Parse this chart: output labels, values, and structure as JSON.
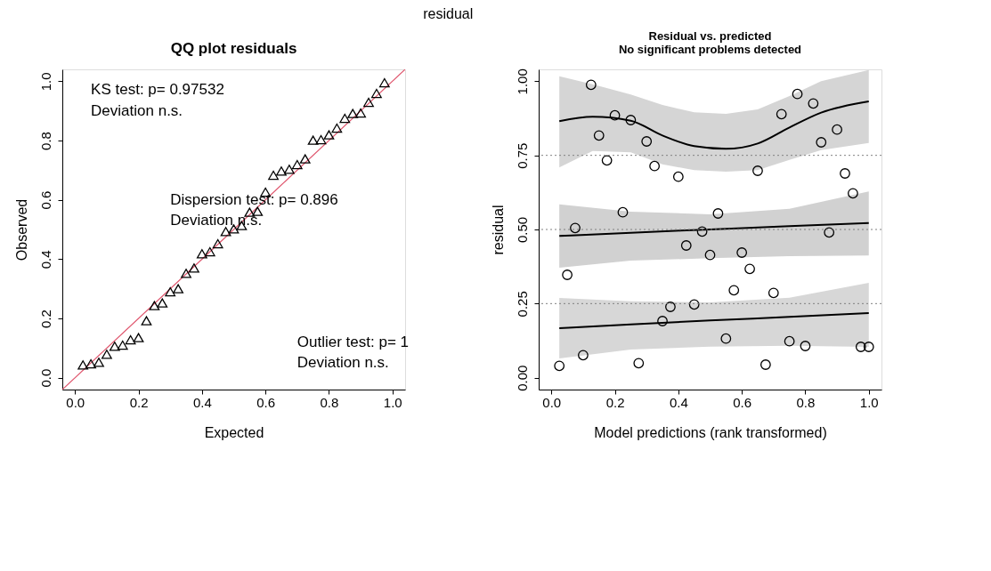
{
  "chart_data": [
    {
      "type": "other",
      "title": "residual"
    },
    {
      "type": "scatter",
      "title": "QQ plot residuals",
      "xlabel": "Expected",
      "ylabel": "Observed",
      "grid": false,
      "xlim": [
        -0.04,
        1.04
      ],
      "ylim": [
        -0.04,
        1.04
      ],
      "xticks": [
        {
          "value": 0,
          "label": "0.0"
        },
        {
          "value": 0.2,
          "label": "0.2"
        },
        {
          "value": 0.4,
          "label": "0.4"
        },
        {
          "value": 0.6,
          "label": "0.6"
        },
        {
          "value": 0.8,
          "label": "0.8"
        },
        {
          "value": 1,
          "label": "1.0"
        }
      ],
      "yticks": [
        {
          "value": 0,
          "label": "0.0"
        },
        {
          "value": 0.2,
          "label": "0.2"
        },
        {
          "value": 0.4,
          "label": "0.4"
        },
        {
          "value": 0.6,
          "label": "0.6"
        },
        {
          "value": 0.8,
          "label": "0.8"
        },
        {
          "value": 1,
          "label": "1.0"
        }
      ],
      "annotations": [
        "KS test: p= 0.97532",
        "Deviation  n.s.",
        "Dispersion test: p= 0.896",
        "Deviation  n.s.",
        "Outlier test: p= 1",
        "Deviation  n.s."
      ],
      "series": [
        {
          "type": "scatter",
          "marker": "triangle",
          "color": "#000000",
          "x": [
            0.025,
            0.05,
            0.075,
            0.1,
            0.125,
            0.15,
            0.175,
            0.2,
            0.225,
            0.25,
            0.275,
            0.3,
            0.325,
            0.35,
            0.375,
            0.4,
            0.425,
            0.45,
            0.475,
            0.5,
            0.525,
            0.55,
            0.575,
            0.6,
            0.625,
            0.65,
            0.675,
            0.7,
            0.725,
            0.75,
            0.775,
            0.8,
            0.825,
            0.85,
            0.875,
            0.9,
            0.925,
            0.95,
            0.975
          ],
          "values": [
            0.043,
            0.047,
            0.052,
            0.079,
            0.106,
            0.11,
            0.128,
            0.135,
            0.192,
            0.243,
            0.252,
            0.29,
            0.3,
            0.352,
            0.37,
            0.418,
            0.425,
            0.452,
            0.493,
            0.502,
            0.513,
            0.558,
            0.561,
            0.626,
            0.683,
            0.697,
            0.703,
            0.719,
            0.738,
            0.801,
            0.803,
            0.819,
            0.842,
            0.875,
            0.891,
            0.893,
            0.929,
            0.959,
            0.995
          ]
        },
        {
          "type": "line",
          "color": "#df536b",
          "x": [
            -0.04,
            1.04
          ],
          "values": [
            -0.04,
            1.04
          ]
        }
      ]
    },
    {
      "type": "scatter",
      "title": "Residual vs. predicted",
      "subtitle": "No significant problems detected",
      "xlabel": "Model predictions (rank transformed)",
      "ylabel": "residual",
      "grid": false,
      "xlim": [
        -0.04,
        1.04
      ],
      "ylim": [
        -0.04,
        1.04
      ],
      "xticks": [
        {
          "value": 0,
          "label": "0.0"
        },
        {
          "value": 0.2,
          "label": "0.2"
        },
        {
          "value": 0.4,
          "label": "0.4"
        },
        {
          "value": 0.6,
          "label": "0.6"
        },
        {
          "value": 0.8,
          "label": "0.8"
        },
        {
          "value": 1,
          "label": "1.0"
        }
      ],
      "yticks": [
        {
          "value": 0,
          "label": "0.00"
        },
        {
          "value": 0.25,
          "label": "0.25"
        },
        {
          "value": 0.5,
          "label": "0.50"
        },
        {
          "value": 0.75,
          "label": "0.75"
        },
        {
          "value": 1,
          "label": "1.00"
        }
      ],
      "ref_lines": [
        {
          "axis": "y",
          "value": 0.25,
          "color": "#808080",
          "line_style": "dotted"
        },
        {
          "axis": "y",
          "value": 0.5,
          "color": "#808080",
          "line_style": "dotted"
        },
        {
          "axis": "y",
          "value": 0.75,
          "color": "#808080",
          "line_style": "dotted"
        }
      ],
      "series": [
        {
          "type": "scatter",
          "marker": "circle",
          "color": "#000000",
          "x": [
            0.025,
            0.05,
            0.075,
            0.1,
            0.125,
            0.15,
            0.175,
            0.2,
            0.225,
            0.25,
            0.275,
            0.3,
            0.325,
            0.35,
            0.375,
            0.4,
            0.425,
            0.45,
            0.475,
            0.5,
            0.525,
            0.55,
            0.575,
            0.6,
            0.625,
            0.65,
            0.675,
            0.7,
            0.725,
            0.75,
            0.775,
            0.8,
            0.825,
            0.85,
            0.875,
            0.9,
            0.925,
            0.95,
            0.975,
            1.0
          ],
          "values": [
            0.04,
            0.347,
            0.505,
            0.076,
            0.988,
            0.817,
            0.733,
            0.885,
            0.558,
            0.869,
            0.049,
            0.797,
            0.714,
            0.191,
            0.239,
            0.678,
            0.446,
            0.247,
            0.493,
            0.414,
            0.554,
            0.132,
            0.295,
            0.422,
            0.367,
            0.698,
            0.044,
            0.286,
            0.889,
            0.123,
            0.957,
            0.107,
            0.925,
            0.794,
            0.49,
            0.837,
            0.689,
            0.622,
            0.104,
            0.104
          ]
        },
        {
          "type": "line",
          "color": "#000000",
          "x": [
            0.025,
            0.13,
            0.25,
            0.35,
            0.45,
            0.55,
            0.65,
            0.75,
            0.85,
            1.0
          ],
          "values": [
            0.865,
            0.88,
            0.867,
            0.817,
            0.781,
            0.772,
            0.79,
            0.844,
            0.894,
            0.932
          ],
          "lower": [
            0.709,
            0.765,
            0.76,
            0.72,
            0.7,
            0.695,
            0.7,
            0.735,
            0.768,
            0.792
          ],
          "upper": [
            1.017,
            0.99,
            0.955,
            0.92,
            0.895,
            0.89,
            0.905,
            0.95,
            1.0,
            1.038
          ]
        },
        {
          "type": "line",
          "color": "#000000",
          "x": [
            0.025,
            0.25,
            0.5,
            0.75,
            1.0
          ],
          "values": [
            0.478,
            0.489,
            0.5,
            0.511,
            0.522
          ],
          "lower": [
            0.371,
            0.395,
            0.403,
            0.41,
            0.412
          ],
          "upper": [
            0.585,
            0.56,
            0.551,
            0.57,
            0.628
          ]
        },
        {
          "type": "line",
          "color": "#000000",
          "x": [
            0.025,
            0.25,
            0.5,
            0.75,
            1.0
          ],
          "values": [
            0.167,
            0.18,
            0.193,
            0.205,
            0.218
          ],
          "lower": [
            0.065,
            0.095,
            0.105,
            0.108,
            0.104
          ],
          "upper": [
            0.269,
            0.258,
            0.254,
            0.27,
            0.32
          ]
        }
      ]
    }
  ]
}
